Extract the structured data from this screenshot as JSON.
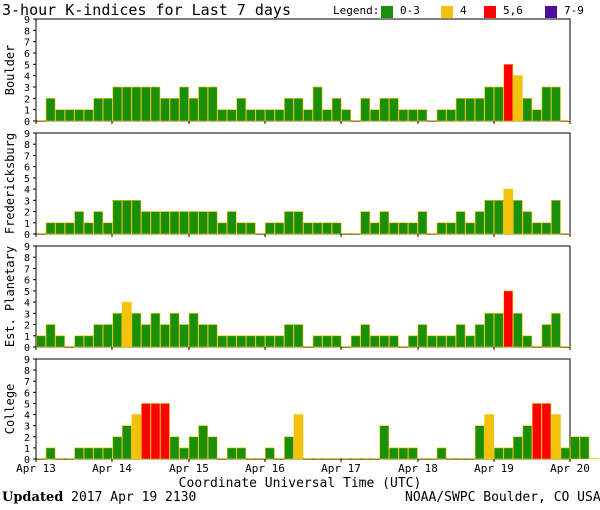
{
  "title": "3-hour K-indices for Last 7 days",
  "legend": {
    "label": "Legend:",
    "entries": [
      {
        "name": "0-3",
        "color": "#1a8f0a"
      },
      {
        "name": "4",
        "color": "#f2c20c"
      },
      {
        "name": "5,6",
        "color": "#ff0000"
      },
      {
        "name": "7-9",
        "color": "#4b0fa0"
      }
    ]
  },
  "footer": {
    "updated_label": "Updated",
    "updated_value": "2017 Apr 19 2130",
    "source": "NOAA/SWPC Boulder, CO USA"
  },
  "chart_data": [
    {
      "type": "bar",
      "title": "3-hour K-indices for Last 7 days",
      "ylabel": "Boulder",
      "xlabel": "Coordinate Universal Time (UTC)",
      "x_ticks": [
        "Apr 13",
        "Apr 14",
        "Apr 15",
        "Apr 16",
        "Apr 17",
        "Apr 18",
        "Apr 19",
        "Apr 20"
      ],
      "ylim": [
        0,
        9
      ],
      "y_ticks": [
        0,
        1,
        2,
        3,
        4,
        5,
        6,
        7,
        8,
        9
      ],
      "values": [
        0,
        2,
        1,
        1,
        1,
        1,
        2,
        2,
        3,
        3,
        3,
        3,
        3,
        2,
        2,
        3,
        2,
        3,
        3,
        1,
        1,
        2,
        1,
        1,
        1,
        1,
        2,
        2,
        1,
        3,
        1,
        2,
        1,
        0,
        2,
        1,
        2,
        2,
        1,
        1,
        1,
        0,
        1,
        1,
        2,
        2,
        2,
        3,
        3,
        5,
        4,
        2,
        1,
        3,
        3,
        0,
        null
      ]
    },
    {
      "type": "bar",
      "title": "",
      "ylabel": "Fredericksburg",
      "xlabel": "Coordinate Universal Time (UTC)",
      "x_ticks": [
        "Apr 13",
        "Apr 14",
        "Apr 15",
        "Apr 16",
        "Apr 17",
        "Apr 18",
        "Apr 19",
        "Apr 20"
      ],
      "ylim": [
        0,
        9
      ],
      "y_ticks": [
        0,
        1,
        2,
        3,
        4,
        5,
        6,
        7,
        8,
        9
      ],
      "values": [
        0,
        1,
        1,
        1,
        2,
        1,
        2,
        1,
        3,
        3,
        3,
        2,
        2,
        2,
        2,
        2,
        2,
        2,
        2,
        1,
        2,
        1,
        1,
        0,
        1,
        1,
        2,
        2,
        1,
        1,
        1,
        1,
        0,
        0,
        2,
        1,
        2,
        1,
        1,
        1,
        2,
        0,
        1,
        1,
        2,
        1,
        2,
        3,
        3,
        4,
        3,
        2,
        1,
        1,
        3,
        0,
        null
      ]
    },
    {
      "type": "bar",
      "title": "",
      "ylabel": "Est. Planetary",
      "xlabel": "Coordinate Universal Time (UTC)",
      "x_ticks": [
        "Apr 13",
        "Apr 14",
        "Apr 15",
        "Apr 16",
        "Apr 17",
        "Apr 18",
        "Apr 19",
        "Apr 20"
      ],
      "ylim": [
        0,
        9
      ],
      "y_ticks": [
        0,
        1,
        2,
        3,
        4,
        5,
        6,
        7,
        8,
        9
      ],
      "values": [
        1,
        2,
        1,
        0,
        1,
        1,
        2,
        2,
        3,
        4,
        3,
        2,
        3,
        2,
        3,
        2,
        3,
        2,
        2,
        1,
        1,
        1,
        1,
        1,
        1,
        1,
        2,
        2,
        0,
        1,
        1,
        1,
        0,
        1,
        2,
        1,
        1,
        1,
        0,
        1,
        2,
        1,
        1,
        1,
        2,
        1,
        2,
        3,
        3,
        5,
        3,
        1,
        0,
        2,
        3,
        0,
        null
      ]
    },
    {
      "type": "bar",
      "title": "",
      "ylabel": "College",
      "xlabel": "Coordinate Universal Time (UTC)",
      "x_ticks": [
        "Apr 13",
        "Apr 14",
        "Apr 15",
        "Apr 16",
        "Apr 17",
        "Apr 18",
        "Apr 19",
        "Apr 20"
      ],
      "ylim": [
        0,
        9
      ],
      "y_ticks": [
        0,
        1,
        2,
        3,
        4,
        5,
        6,
        7,
        8,
        9
      ],
      "values": [
        0,
        1,
        0,
        0,
        1,
        1,
        1,
        1,
        2,
        3,
        4,
        5,
        5,
        5,
        2,
        1,
        2,
        3,
        2,
        0,
        1,
        1,
        0,
        0,
        1,
        0,
        2,
        4,
        0,
        0,
        0,
        0,
        0,
        0,
        0,
        0,
        3,
        1,
        1,
        1,
        0,
        0,
        1,
        0,
        0,
        0,
        3,
        4,
        1,
        1,
        2,
        3,
        5,
        5,
        4,
        1,
        2,
        2,
        0
      ]
    }
  ]
}
